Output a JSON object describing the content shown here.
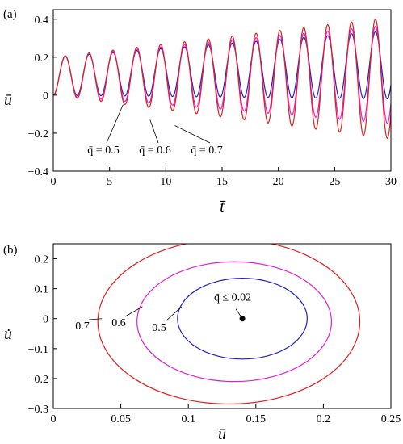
{
  "chart_data": [
    {
      "type": "line",
      "panel_label": "(a)",
      "xlabel": "t̄",
      "ylabel": "ū",
      "xlim": [
        0,
        30
      ],
      "ylim": [
        -0.4,
        0.45
      ],
      "xticks": [
        0,
        5,
        10,
        15,
        20,
        25,
        30
      ],
      "yticks": [
        -0.4,
        -0.2,
        0,
        0.2,
        0.4
      ],
      "xtick_labels": [
        "0",
        "5",
        "10",
        "15",
        "20",
        "25",
        "30"
      ],
      "ytick_labels": [
        "−0.4",
        "−0.2",
        "0",
        "0.2",
        "0.4"
      ],
      "series": [
        {
          "name": "q̄ = 0.5",
          "color": "#2020c8",
          "amplitude_start": 0.1,
          "amplitude_end": 0.18,
          "mean_start": 0.1,
          "mean_end": 0.16,
          "period": 2.12
        },
        {
          "name": "q̄ = 0.6",
          "color": "#e020d0",
          "amplitude_start": 0.1,
          "amplitude_end": 0.26,
          "mean_start": 0.1,
          "mean_end": 0.11,
          "period": 2.12
        },
        {
          "name": "q̄ = 0.7",
          "color": "#e02020",
          "amplitude_start": 0.1,
          "amplitude_end": 0.32,
          "mean_start": 0.1,
          "mean_end": 0.09,
          "period": 2.12
        }
      ],
      "annotations": [
        {
          "text": "q̄ = 0.5",
          "points_to": [
            6.2,
            -0.05
          ]
        },
        {
          "text": "q̄ = 0.6",
          "points_to": [
            8.6,
            -0.13
          ]
        },
        {
          "text": "q̄ = 0.7",
          "points_to": [
            10.8,
            -0.16
          ]
        }
      ]
    },
    {
      "type": "line",
      "panel_label": "(b)",
      "xlabel": "ū",
      "ylabel": "u̇",
      "xlim": [
        0,
        0.25
      ],
      "ylim": [
        -0.3,
        0.25
      ],
      "xticks": [
        0,
        0.05,
        0.1,
        0.15,
        0.2,
        0.25
      ],
      "yticks": [
        -0.3,
        -0.2,
        -0.1,
        0,
        0.1,
        0.2
      ],
      "xtick_labels": [
        "0",
        "0.05",
        "0.1",
        "0.15",
        "0.2",
        "0.25"
      ],
      "ytick_labels": [
        "−0.3",
        "−0.2",
        "−0.1",
        "0",
        "0.1",
        "0.2"
      ],
      "series": [
        {
          "name": "0.5",
          "color": "#2020c8",
          "center": [
            0.14,
            0.0
          ],
          "rx": 0.048,
          "ry": 0.135
        },
        {
          "name": "0.6",
          "color": "#e020d0",
          "center": [
            0.134,
            -0.01
          ],
          "rx": 0.072,
          "ry": 0.2
        },
        {
          "name": "0.7",
          "color": "#e02020",
          "center": [
            0.13,
            -0.01
          ],
          "rx": 0.097,
          "ry": 0.275
        }
      ],
      "fixed_point": {
        "label": "q̄ ≤ 0.02",
        "x": 0.14,
        "y": 0.0
      },
      "annotations": [
        {
          "text": "0.7",
          "points_to": [
            0.036,
            0.0
          ]
        },
        {
          "text": "0.6",
          "points_to": [
            0.066,
            0.04
          ]
        },
        {
          "text": "0.5",
          "points_to": [
            0.095,
            0.04
          ]
        }
      ]
    }
  ]
}
